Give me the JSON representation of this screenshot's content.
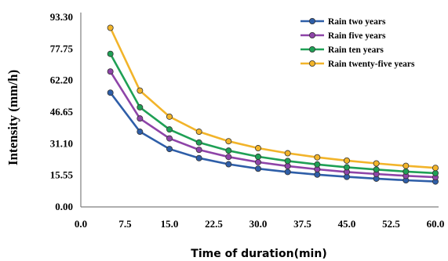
{
  "chart_data": {
    "type": "line",
    "xlabel": "Time of duration(min)",
    "ylabel": "Intensity (mm/h)",
    "xlim": [
      0,
      60
    ],
    "ylim": [
      0,
      93.3
    ],
    "xticks": [
      "0.0",
      "7.5",
      "15.0",
      "22.5",
      "30.0",
      "37.5",
      "45.0",
      "52.5",
      "60.0"
    ],
    "yticks": [
      "0.00",
      "15.55",
      "31.10",
      "46.65",
      "62.20",
      "77.75",
      "93.30"
    ],
    "grid": false,
    "legend_position": "top-right",
    "x": [
      5,
      10,
      15,
      20,
      25,
      30,
      35,
      40,
      45,
      50,
      55,
      60
    ],
    "series": [
      {
        "name": "Rain two years",
        "color": "#2e5ea8",
        "values": [
          56.2,
          37.0,
          28.5,
          24.0,
          21.0,
          18.8,
          17.2,
          15.9,
          14.8,
          13.9,
          13.1,
          12.5
        ]
      },
      {
        "name": "Rain five years",
        "color": "#8e44a8",
        "values": [
          66.6,
          43.5,
          33.7,
          28.1,
          24.6,
          22.0,
          20.1,
          18.5,
          17.2,
          16.2,
          15.3,
          14.6
        ]
      },
      {
        "name": "Rain ten years",
        "color": "#1fa055",
        "values": [
          75.3,
          49.0,
          38.1,
          31.7,
          27.7,
          24.7,
          22.6,
          20.9,
          19.5,
          18.4,
          17.4,
          16.6
        ]
      },
      {
        "name": "Rain twenty-five years",
        "color": "#f2b42a",
        "values": [
          88.1,
          57.2,
          44.4,
          37.0,
          32.3,
          28.9,
          26.4,
          24.4,
          22.8,
          21.4,
          20.2,
          19.2
        ]
      }
    ]
  }
}
